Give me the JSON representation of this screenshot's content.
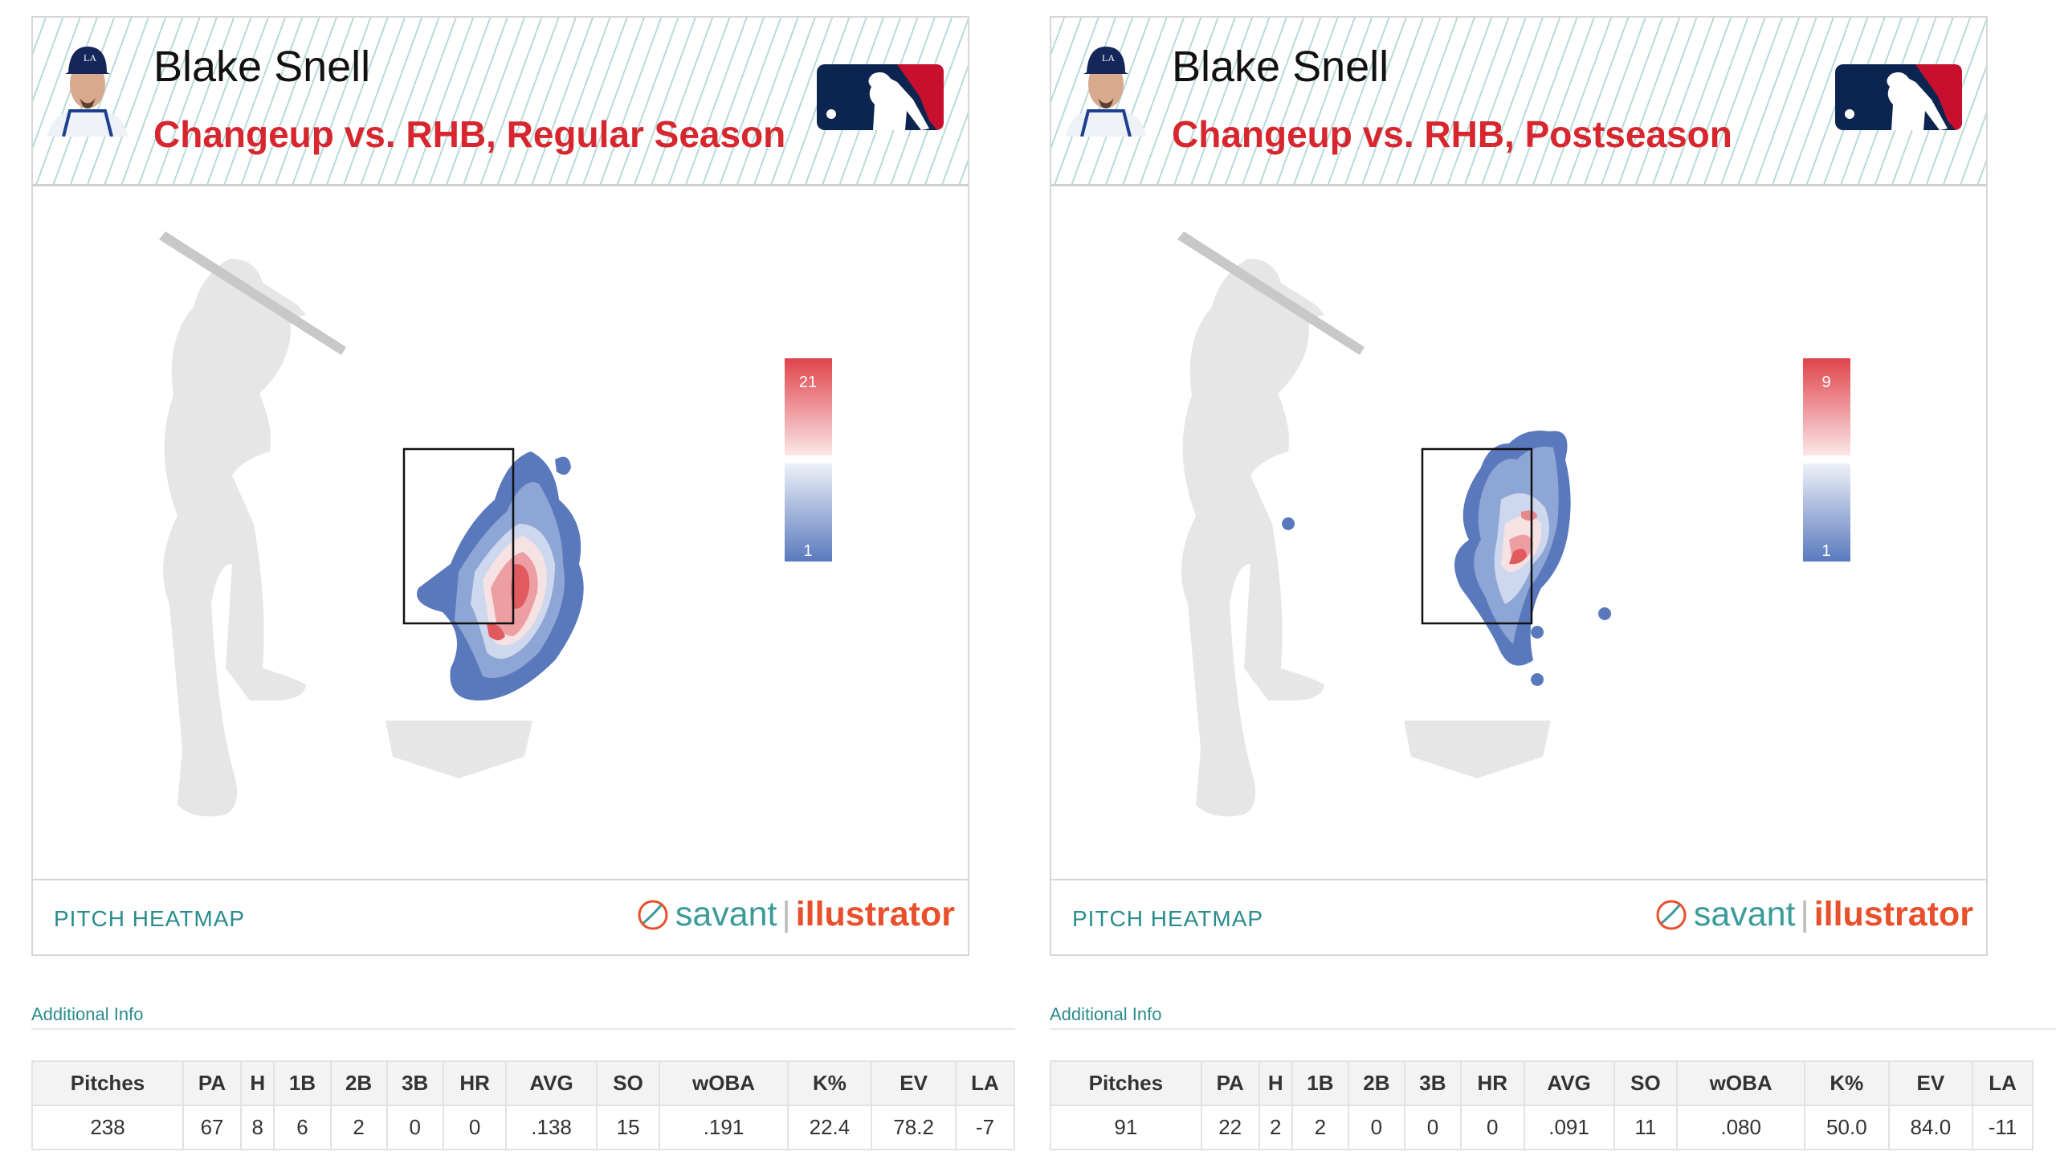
{
  "panels": [
    {
      "player": "Blake Snell",
      "title": "Changeup vs. RHB, Regular Season",
      "legend_max": "21",
      "legend_min": "1",
      "footer_label": "PITCH HEATMAP",
      "brand_a": "savant",
      "brand_sep": "|",
      "brand_b": "illustrator"
    },
    {
      "player": "Blake Snell",
      "title": "Changeup vs. RHB, Postseason",
      "legend_max": "9",
      "legend_min": "1",
      "footer_label": "PITCH HEATMAP",
      "brand_a": "savant",
      "brand_sep": "|",
      "brand_b": "illustrator"
    }
  ],
  "additional_info_label": "Additional Info",
  "table_headers": [
    "Pitches",
    "PA",
    "H",
    "1B",
    "2B",
    "3B",
    "HR",
    "AVG",
    "SO",
    "wOBA",
    "K%",
    "EV",
    "LA"
  ],
  "tables": [
    [
      "238",
      "67",
      "8",
      "6",
      "2",
      "0",
      "0",
      ".138",
      "15",
      ".191",
      "22.4",
      "78.2",
      "-7"
    ],
    [
      "91",
      "22",
      "2",
      "2",
      "0",
      "0",
      "0",
      ".091",
      "11",
      ".080",
      "50.0",
      "84.0",
      "-11"
    ]
  ],
  "colors": {
    "title_red": "#d7262e",
    "teal": "#2a8c8c",
    "orange": "#e8502c",
    "mlb_navy": "#0b2550",
    "mlb_red": "#c8102e"
  }
}
